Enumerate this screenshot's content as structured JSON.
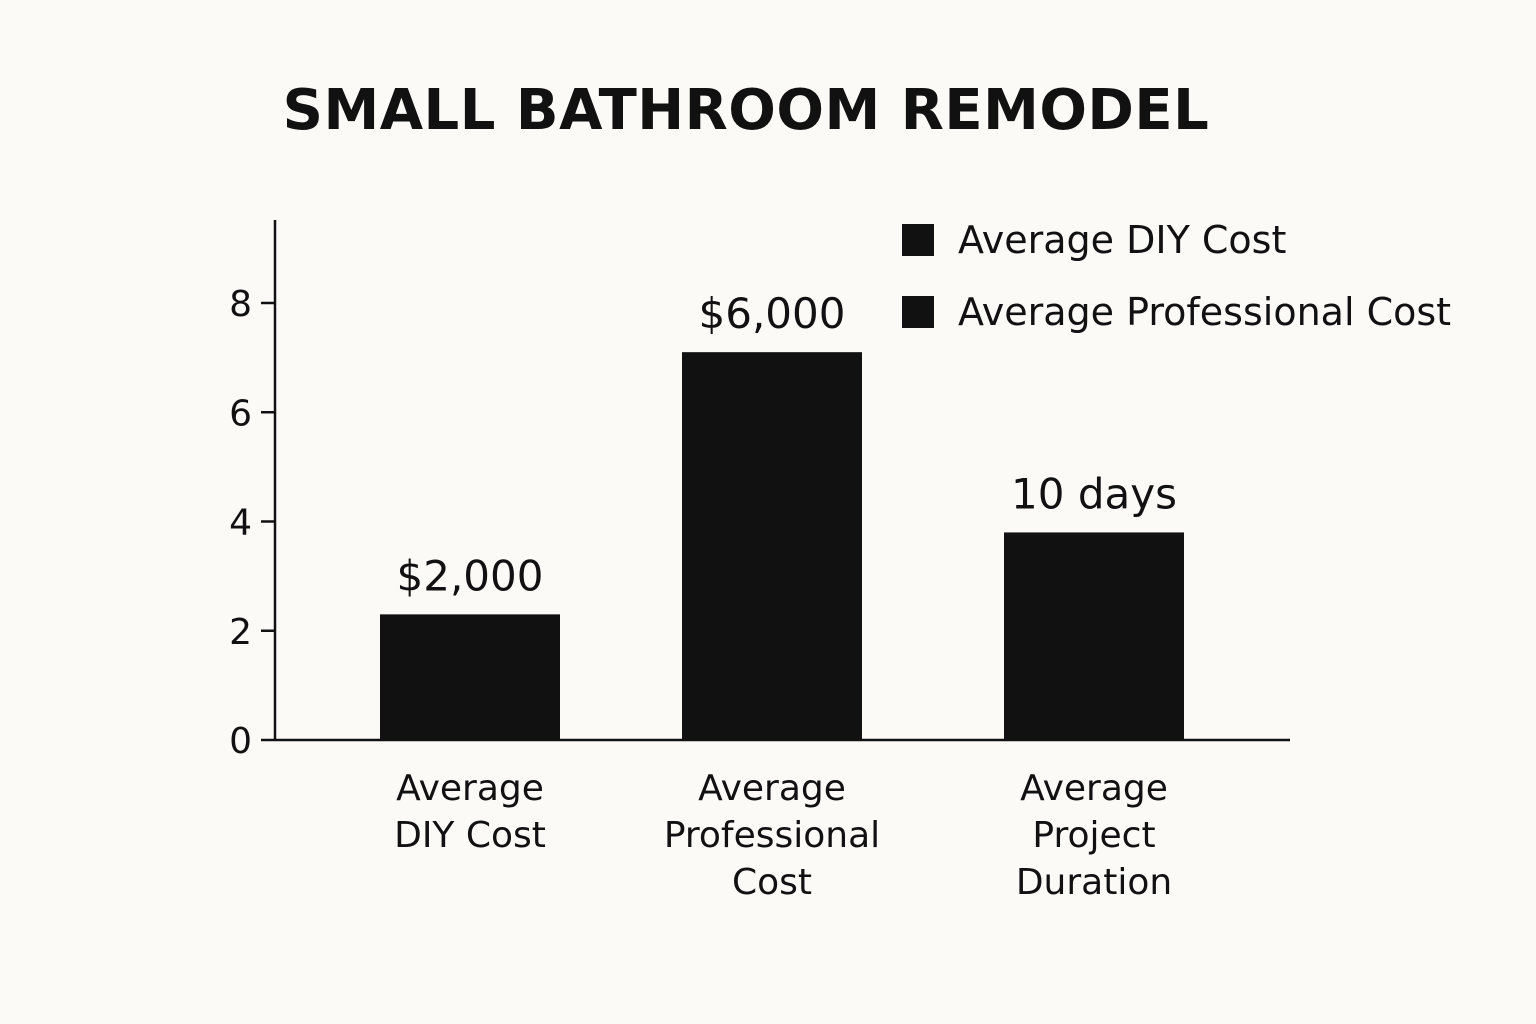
{
  "chart_data": {
    "type": "bar",
    "title": "SMALL BATHROOM REMODEL",
    "xlabel": "",
    "ylabel": "",
    "ylim": [
      0,
      9.5
    ],
    "yticks": [
      0,
      2,
      4,
      6,
      8
    ],
    "grid": false,
    "legend_position": "top-right",
    "bar_color": "#111111",
    "categories": [
      [
        "Average",
        "DIY Cost"
      ],
      [
        "Average",
        "Professional",
        "Cost"
      ],
      [
        "Average",
        "Project",
        "Duration"
      ]
    ],
    "values": [
      2.3,
      7.1,
      3.8
    ],
    "data_labels": [
      "$2,000",
      "$6,000",
      "10 days"
    ],
    "legend": [
      {
        "label": "Average DIY Cost",
        "color": "#111111"
      },
      {
        "label": "Average Professional Cost",
        "color": "#111111"
      }
    ]
  }
}
